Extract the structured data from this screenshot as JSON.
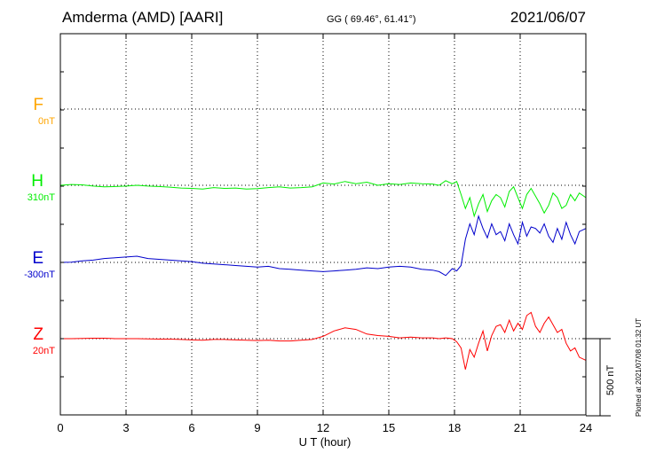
{
  "header": {
    "station": "Amderma (AMD)  [AARI]",
    "coords": "GG ( 69.46°,  61.41°)",
    "date": "2021/06/07"
  },
  "footer": {
    "plotted": "Plotted at 2021/07/08 01:32 UT",
    "scale_label": "500 nT"
  },
  "chart_data": {
    "type": "line",
    "title": "Amderma (AMD)  [AARI]",
    "xlabel": "U T (hour)",
    "ylabel": "",
    "xlim": [
      0,
      24
    ],
    "xticks": [
      0,
      3,
      6,
      9,
      12,
      15,
      18,
      21,
      24
    ],
    "grid": true,
    "scale_bar_nT": 500,
    "series": [
      {
        "name": "F",
        "baseline": "0nT",
        "color": "#ffa500",
        "values": []
      },
      {
        "name": "H",
        "baseline": "310nT",
        "color": "#00ee00",
        "x": [
          0,
          0.5,
          1,
          1.5,
          2,
          2.5,
          3,
          3.5,
          4,
          4.5,
          5,
          5.5,
          6,
          6.5,
          7,
          7.5,
          8,
          8.5,
          9,
          9.5,
          10,
          10.5,
          11,
          11.5,
          12,
          12.5,
          13,
          13.5,
          14,
          14.5,
          15,
          15.5,
          16,
          16.5,
          17,
          17.3,
          17.6,
          17.9,
          18.1,
          18.3,
          18.5,
          18.7,
          18.9,
          19.1,
          19.3,
          19.5,
          19.7,
          19.9,
          20.1,
          20.3,
          20.5,
          20.7,
          20.9,
          21.1,
          21.3,
          21.5,
          21.7,
          21.9,
          22.1,
          22.3,
          22.5,
          22.7,
          22.9,
          23.1,
          23.3,
          23.5,
          23.7,
          24
        ],
        "values": [
          0,
          5,
          3,
          -5,
          -10,
          -8,
          -5,
          0,
          -5,
          -8,
          -12,
          -18,
          -20,
          -25,
          -15,
          -20,
          -18,
          -25,
          -22,
          -15,
          -10,
          -18,
          -15,
          -10,
          15,
          8,
          25,
          10,
          20,
          0,
          10,
          5,
          15,
          10,
          8,
          0,
          30,
          10,
          25,
          -60,
          -150,
          -80,
          -200,
          -120,
          -60,
          -170,
          -100,
          -60,
          -80,
          -140,
          -40,
          -10,
          -80,
          -150,
          -60,
          -20,
          -70,
          -120,
          -180,
          -130,
          -50,
          -80,
          -150,
          -130,
          -60,
          -100,
          -50,
          -80
        ]
      },
      {
        "name": "E",
        "baseline": "-300nT",
        "color": "#0000cc",
        "x": [
          0,
          0.5,
          1,
          1.5,
          2,
          2.5,
          3,
          3.5,
          4,
          4.5,
          5,
          5.5,
          6,
          6.5,
          7,
          7.5,
          8,
          8.5,
          9,
          9.5,
          10,
          10.5,
          11,
          11.5,
          12,
          12.5,
          13,
          13.5,
          14,
          14.5,
          15,
          15.5,
          16,
          16.5,
          17,
          17.3,
          17.6,
          17.9,
          18.1,
          18.3,
          18.5,
          18.7,
          18.9,
          19.1,
          19.3,
          19.5,
          19.7,
          19.9,
          20.1,
          20.3,
          20.5,
          20.7,
          20.9,
          21.1,
          21.3,
          21.5,
          21.7,
          21.9,
          22.1,
          22.3,
          22.5,
          22.7,
          22.9,
          23.1,
          23.3,
          23.5,
          23.7,
          24
        ],
        "values": [
          0,
          2,
          10,
          15,
          25,
          30,
          35,
          40,
          25,
          20,
          15,
          10,
          5,
          -5,
          -10,
          -15,
          -20,
          -25,
          -30,
          -25,
          -40,
          -45,
          -50,
          -55,
          -60,
          -55,
          -50,
          -45,
          -35,
          -40,
          -30,
          -25,
          -30,
          -45,
          -50,
          -60,
          -85,
          -40,
          -55,
          -20,
          150,
          250,
          180,
          300,
          220,
          160,
          250,
          180,
          200,
          140,
          250,
          180,
          120,
          260,
          170,
          230,
          220,
          190,
          250,
          170,
          130,
          220,
          150,
          260,
          180,
          120,
          200,
          220
        ]
      },
      {
        "name": "Z",
        "baseline": "20nT",
        "color": "#ff0000",
        "x": [
          0,
          0.5,
          1,
          1.5,
          2,
          2.5,
          3,
          3.5,
          4,
          4.5,
          5,
          5.5,
          6,
          6.5,
          7,
          7.5,
          8,
          8.5,
          9,
          9.5,
          10,
          10.5,
          11,
          11.5,
          12,
          12.5,
          13,
          13.5,
          14,
          14.5,
          15,
          15.5,
          16,
          16.5,
          17,
          17.3,
          17.6,
          17.9,
          18.1,
          18.3,
          18.5,
          18.7,
          18.9,
          19.1,
          19.3,
          19.5,
          19.7,
          19.9,
          20.1,
          20.3,
          20.5,
          20.7,
          20.9,
          21.1,
          21.3,
          21.5,
          21.7,
          21.9,
          22.1,
          22.3,
          22.5,
          22.7,
          22.9,
          23.1,
          23.3,
          23.5,
          23.7,
          24
        ],
        "values": [
          0,
          0,
          2,
          3,
          3,
          0,
          0,
          0,
          -2,
          -3,
          -3,
          -5,
          -8,
          -10,
          -5,
          -5,
          -8,
          -10,
          -12,
          -10,
          -15,
          -15,
          -10,
          -5,
          15,
          50,
          70,
          60,
          30,
          20,
          15,
          5,
          10,
          5,
          5,
          0,
          5,
          0,
          -20,
          -60,
          -200,
          -70,
          -120,
          -30,
          50,
          -80,
          20,
          80,
          90,
          40,
          120,
          50,
          100,
          60,
          150,
          170,
          80,
          40,
          100,
          140,
          90,
          40,
          60,
          -30,
          -80,
          -60,
          -120,
          -140
        ]
      }
    ]
  }
}
